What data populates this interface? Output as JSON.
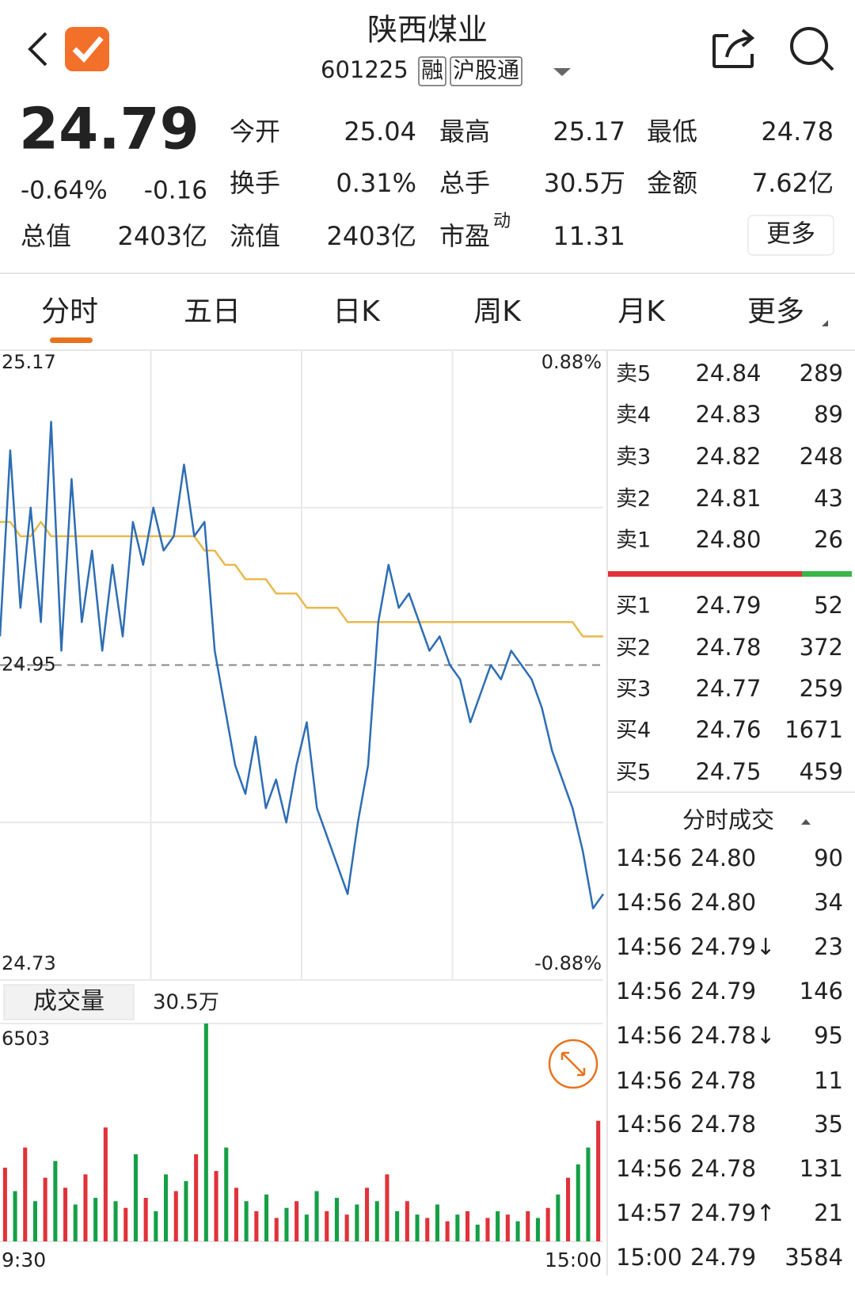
{
  "header": {
    "title": "陕西煤业",
    "code": "601225",
    "tags": [
      "融",
      "沪股通"
    ]
  },
  "quote": {
    "price": "24.79",
    "change_pct": "-0.64%",
    "change": "-0.16",
    "stats": [
      [
        {
          "label": "今开",
          "value": "25.04",
          "color": "#e0323a"
        },
        {
          "label": "最高",
          "value": "25.17",
          "color": "#e0323a"
        },
        {
          "label": "最低",
          "value": "24.78",
          "color": "#15a046"
        }
      ],
      [
        {
          "label": "换手",
          "value": "0.31%",
          "color": "#222222"
        },
        {
          "label": "总手",
          "value": "30.5万",
          "color": "#222222"
        },
        {
          "label": "金额",
          "value": "7.62亿",
          "color": "#222222"
        }
      ],
      [
        {
          "label": "总值",
          "value": "2403亿",
          "color": "#222222"
        },
        {
          "label": "流值",
          "value": "2403亿",
          "color": "#222222"
        },
        {
          "label": "市盈",
          "sup": "动",
          "value": "11.31",
          "color": "#222222"
        }
      ]
    ],
    "more": "更多"
  },
  "tabs": [
    "分时",
    "五日",
    "日K",
    "周K",
    "月K",
    "更多"
  ],
  "chart_data": [
    {
      "type": "line",
      "ylim": [
        24.73,
        25.17
      ],
      "yticks": [
        25.17,
        24.95,
        24.73
      ],
      "y2lim": [
        -0.88,
        0.88
      ],
      "y2ticks": [
        {
          "value": 0.88,
          "label": "0.88%"
        },
        {
          "value": -0.88,
          "label": "-0.88%"
        }
      ],
      "x_labels": [
        "9:30",
        "15:00"
      ],
      "series": [
        {
          "color": "#2d6db4",
          "values": [
            24.97,
            25.1,
            24.99,
            25.06,
            24.98,
            25.12,
            24.96,
            25.08,
            24.98,
            25.03,
            24.96,
            25.02,
            24.97,
            25.05,
            25.02,
            25.06,
            25.03,
            25.04,
            25.09,
            25.04,
            25.05,
            24.96,
            24.92,
            24.88,
            24.86,
            24.9,
            24.85,
            24.87,
            24.84,
            24.88,
            24.91,
            24.85,
            24.83,
            24.81,
            24.79,
            24.84,
            24.88,
            24.98,
            25.02,
            24.99,
            25.0,
            24.98,
            24.96,
            24.97,
            24.95,
            24.94,
            24.91,
            24.93,
            24.95,
            24.94,
            24.96,
            24.95,
            24.94,
            24.92,
            24.89,
            24.87,
            24.85,
            24.82,
            24.78,
            24.79
          ]
        },
        {
          "color": "#e9b94d",
          "values": [
            25.05,
            25.05,
            25.04,
            25.04,
            25.05,
            25.04,
            25.04,
            25.04,
            25.04,
            25.04,
            25.04,
            25.04,
            25.04,
            25.04,
            25.04,
            25.04,
            25.04,
            25.04,
            25.04,
            25.04,
            25.03,
            25.03,
            25.02,
            25.02,
            25.01,
            25.01,
            25.01,
            25.0,
            25.0,
            25.0,
            24.99,
            24.99,
            24.99,
            24.99,
            24.98,
            24.98,
            24.98,
            24.98,
            24.98,
            24.98,
            24.98,
            24.98,
            24.98,
            24.98,
            24.98,
            24.98,
            24.98,
            24.98,
            24.98,
            24.98,
            24.98,
            24.98,
            24.98,
            24.98,
            24.98,
            24.98,
            24.98,
            24.97,
            24.97,
            24.97
          ]
        }
      ]
    },
    {
      "type": "bar",
      "title": "成交量",
      "total": "30.5万",
      "ylim": [
        0,
        6503
      ],
      "yticks": [
        6503
      ],
      "series": [
        {
          "color": "#e0323a",
          "values": [
            2200,
            null,
            2800,
            null,
            1900,
            null,
            1600,
            null,
            2000,
            null,
            3400,
            null,
            1000,
            null,
            1300,
            null,
            null,
            1500,
            null,
            2600,
            null,
            2100,
            null,
            1600,
            null,
            900,
            null,
            700,
            null,
            1200,
            null,
            null,
            900,
            null,
            800,
            null,
            1600,
            null,
            2000,
            null,
            1200,
            null,
            700,
            null,
            600,
            null,
            900,
            null,
            700,
            null,
            800,
            null,
            900,
            null,
            1000,
            null,
            1900,
            null,
            null,
            3600
          ]
        },
        {
          "color": "#15a046",
          "values": [
            null,
            1500,
            null,
            1200,
            null,
            2400,
            null,
            1100,
            null,
            1300,
            null,
            1200,
            null,
            2600,
            null,
            900,
            2000,
            null,
            1800,
            null,
            6503,
            null,
            2800,
            null,
            1200,
            null,
            1400,
            null,
            1000,
            null,
            800,
            1500,
            null,
            1300,
            null,
            1100,
            null,
            1200,
            null,
            900,
            null,
            800,
            null,
            1100,
            null,
            800,
            null,
            500,
            null,
            900,
            null,
            600,
            null,
            700,
            null,
            1400,
            null,
            2300,
            2800,
            null
          ]
        }
      ]
    }
  ],
  "order_book": {
    "asks": [
      {
        "label": "卖5",
        "price": "24.84",
        "volume": "289"
      },
      {
        "label": "卖4",
        "price": "24.83",
        "volume": "89"
      },
      {
        "label": "卖3",
        "price": "24.82",
        "volume": "248"
      },
      {
        "label": "卖2",
        "price": "24.81",
        "volume": "43"
      },
      {
        "label": "卖1",
        "price": "24.80",
        "volume": "26"
      }
    ],
    "bids": [
      {
        "label": "买1",
        "price": "24.79",
        "volume": "52"
      },
      {
        "label": "买2",
        "price": "24.78",
        "volume": "372"
      },
      {
        "label": "买3",
        "price": "24.77",
        "volume": "259"
      },
      {
        "label": "买4",
        "price": "24.76",
        "volume": "1671"
      },
      {
        "label": "买5",
        "price": "24.75",
        "volume": "459"
      }
    ]
  },
  "trades": {
    "title": "分时成交",
    "rows": [
      {
        "time": "14:56",
        "price": "24.80",
        "volume": "90",
        "color": "#e0323a"
      },
      {
        "time": "14:56",
        "price": "24.80",
        "volume": "34",
        "color": "#e0323a"
      },
      {
        "time": "14:56",
        "price": "24.79↓",
        "volume": "23",
        "color": "#15a046"
      },
      {
        "time": "14:56",
        "price": "24.79",
        "volume": "146",
        "color": "#15a046"
      },
      {
        "time": "14:56",
        "price": "24.78↓",
        "volume": "95",
        "color": "#15a046"
      },
      {
        "time": "14:56",
        "price": "24.78",
        "volume": "11",
        "color": "#15a046"
      },
      {
        "time": "14:56",
        "price": "24.78",
        "volume": "35",
        "color": "#15a046"
      },
      {
        "time": "14:56",
        "price": "24.78",
        "volume": "131",
        "color": "#15a046"
      },
      {
        "time": "14:57",
        "price": "24.79↑",
        "volume": "21",
        "color": "#e0323a"
      },
      {
        "time": "15:00",
        "price": "24.79",
        "volume": "3584",
        "color": "#15a046"
      }
    ]
  }
}
